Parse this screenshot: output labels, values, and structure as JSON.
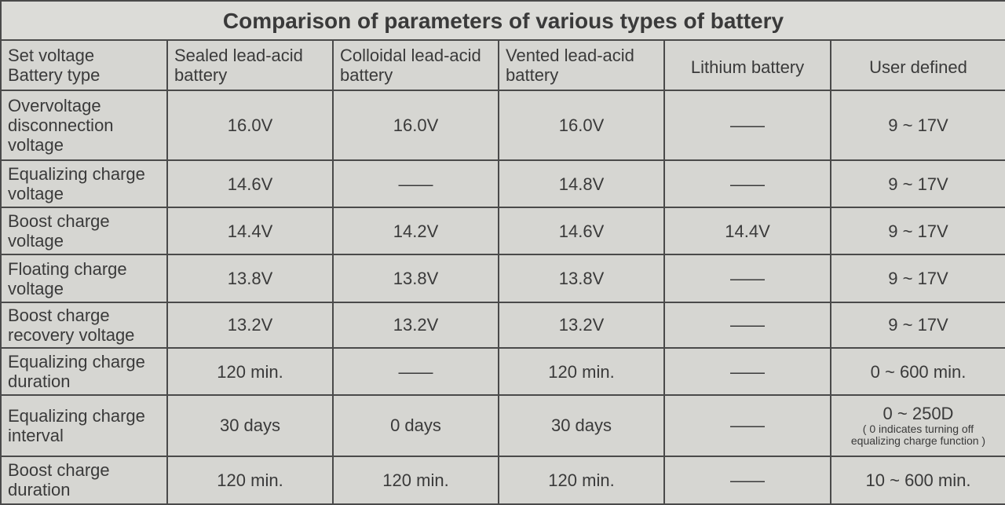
{
  "title": "Comparison of parameters of various types of battery",
  "header": {
    "corner": [
      "Set voltage",
      "Battery type"
    ],
    "columns": [
      "Sealed lead-acid battery",
      "Colloidal lead-acid battery",
      "Vented lead-acid battery",
      "Lithium battery",
      "User defined"
    ]
  },
  "rows": [
    {
      "label": "Overvoltage disconnection voltage",
      "values": [
        "16.0V",
        "16.0V",
        "16.0V",
        "——",
        "9 ~ 17V"
      ]
    },
    {
      "label": "Equalizing charge voltage",
      "values": [
        "14.6V",
        "——",
        "14.8V",
        "——",
        "9 ~ 17V"
      ]
    },
    {
      "label": "Boost charge voltage",
      "values": [
        "14.4V",
        "14.2V",
        "14.6V",
        "14.4V",
        "9 ~ 17V"
      ]
    },
    {
      "label": "Floating charge voltage",
      "values": [
        "13.8V",
        "13.8V",
        "13.8V",
        "——",
        "9 ~ 17V"
      ]
    },
    {
      "label": "Boost charge recovery voltage",
      "values": [
        "13.2V",
        "13.2V",
        "13.2V",
        "——",
        "9 ~ 17V"
      ]
    },
    {
      "label": "Equalizing charge duration",
      "values": [
        "120 min.",
        "——",
        "120 min.",
        "——",
        "0 ~ 600 min."
      ]
    },
    {
      "label": "Equalizing charge interval",
      "values": [
        "30 days",
        "0 days",
        "30 days",
        "——",
        "0 ~ 250D"
      ],
      "note": "( 0 indicates turning off equalizing charge function )"
    },
    {
      "label": "Boost charge duration",
      "values": [
        "120 min.",
        "120 min.",
        "120 min.",
        "——",
        "10 ~ 600 min."
      ]
    }
  ]
}
